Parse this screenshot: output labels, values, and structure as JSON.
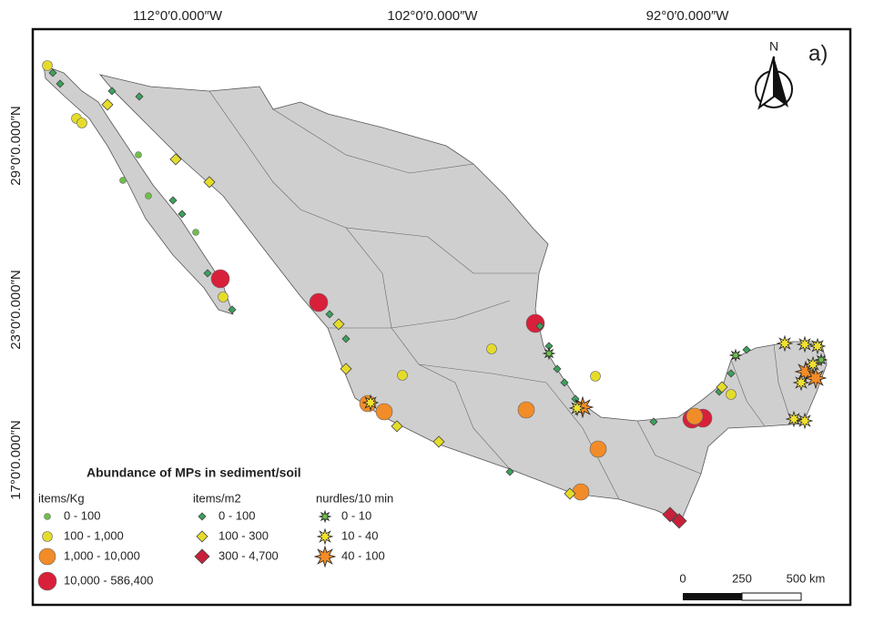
{
  "map": {
    "label": "a)",
    "north": "N",
    "x_labels": [
      "112°0′0.000″W",
      "102°0′0.000″W",
      "92°0′0.000″W"
    ],
    "y_labels": [
      "29°0′0.000″N",
      "23°0′0.000″N",
      "17°0′0.000″N"
    ],
    "legend": {
      "title": "Abundance of MPs in sediment/soil",
      "groups": [
        {
          "header": "items/Kg",
          "items": [
            "0 - 100",
            "100 - 1,000",
            "1,000 - 10,000",
            "10,000 - 586,400"
          ]
        },
        {
          "header": "items/m2",
          "items": [
            "0 - 100",
            "100 - 300",
            "300 - 4,700"
          ]
        },
        {
          "header": "nurdles/10 min",
          "items": [
            "0 - 10",
            "10 - 40",
            "40 - 100"
          ]
        }
      ]
    },
    "scale_bar": {
      "labels": [
        "0",
        "250",
        "500 km"
      ]
    }
  }
}
